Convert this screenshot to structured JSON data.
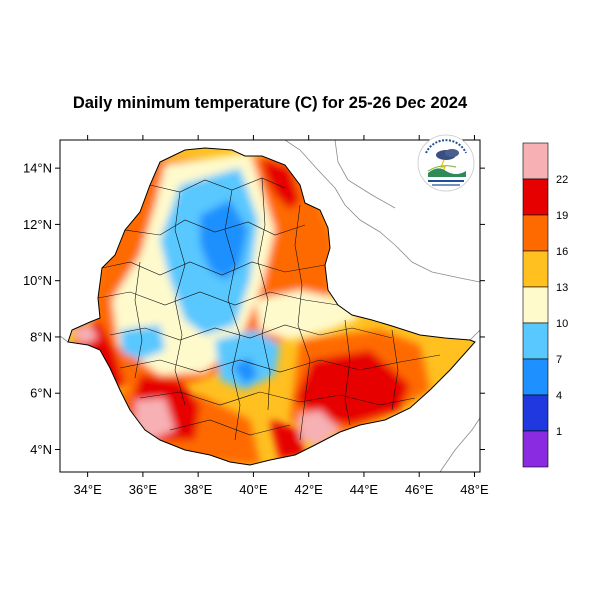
{
  "title": "Daily minimum temperature (C) for 25-26 Dec 2024",
  "map": {
    "lon_range": [
      33,
      48.2
    ],
    "lat_range": [
      3.2,
      15
    ],
    "lat_ticks": [
      {
        "value": 4,
        "label": "4°N"
      },
      {
        "value": 6,
        "label": "6°N"
      },
      {
        "value": 8,
        "label": "8°N"
      },
      {
        "value": 10,
        "label": "10°N"
      },
      {
        "value": 12,
        "label": "12°N"
      },
      {
        "value": 14,
        "label": "14°N"
      }
    ],
    "lon_ticks": [
      {
        "value": 34,
        "label": "34°E"
      },
      {
        "value": 36,
        "label": "36°E"
      },
      {
        "value": 38,
        "label": "38°E"
      },
      {
        "value": 40,
        "label": "40°E"
      },
      {
        "value": 42,
        "label": "42°E"
      },
      {
        "value": 44,
        "label": "44°E"
      },
      {
        "value": 46,
        "label": "46°E"
      },
      {
        "value": 48,
        "label": "48°E"
      }
    ]
  },
  "legend": {
    "labels": [
      "22",
      "19",
      "16",
      "13",
      "10",
      "7",
      "4",
      "1"
    ],
    "colors": [
      "#f7b0b4",
      "#e60000",
      "#ff6a00",
      "#ffc020",
      "#fffacc",
      "#58c8ff",
      "#1e90ff",
      "#2038e0",
      "#8a2be2"
    ]
  },
  "logo": {
    "name": "ethiopian-meteorology-institute-logo"
  }
}
